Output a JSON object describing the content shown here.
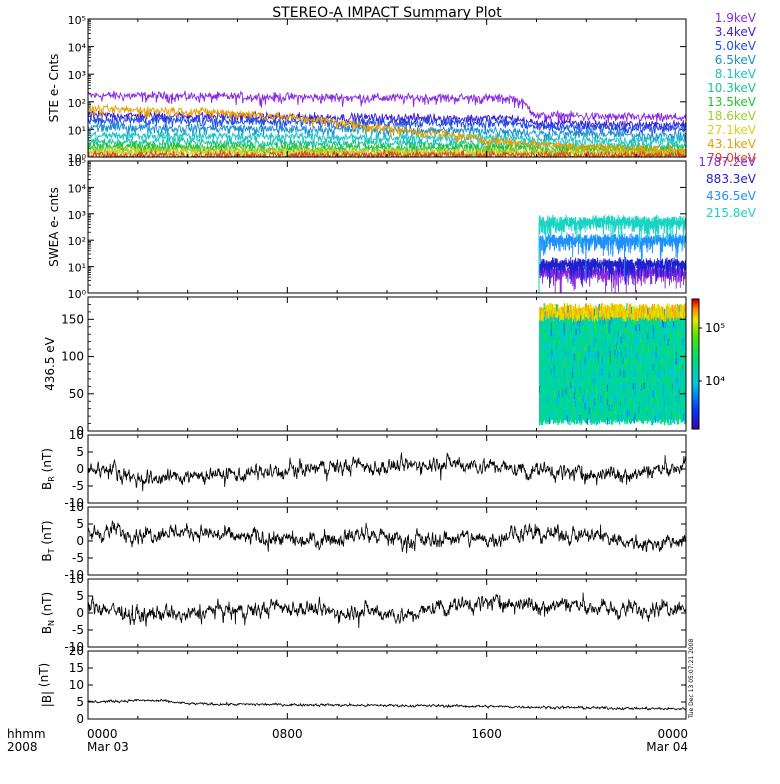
{
  "title": "STEREO-A IMPACT Summary Plot",
  "timestamp": "Tue Dec 13 05:07:21 2008",
  "time_axis": {
    "row1_label": "hhmm",
    "row2_label": "2008",
    "ticks": [
      {
        "hour": 0,
        "time": "0000",
        "date": "Mar 03"
      },
      {
        "hour": 8,
        "time": "0800",
        "date": ""
      },
      {
        "hour": 16,
        "time": "1600",
        "date": ""
      },
      {
        "hour": 24,
        "time": "0000",
        "date": "Mar 04"
      }
    ]
  },
  "chart_data": [
    {
      "id": "ste",
      "type": "line",
      "ylabel": "STE e- Cnts",
      "yscale": "log",
      "ylim": [
        1,
        100000
      ],
      "ytick_labels": [
        "10⁰",
        "10¹",
        "10²",
        "10³",
        "10⁴",
        "10⁵"
      ],
      "xlim_hours": [
        0,
        24
      ],
      "series": [
        {
          "name": "1.9keV",
          "color": "#8a2be2",
          "level": [
            170,
            170,
            165,
            165,
            160,
            155,
            155,
            150,
            150,
            145,
            145,
            140,
            140,
            140,
            140,
            140,
            135,
            135,
            30,
            32,
            30,
            28,
            28,
            27,
            27
          ]
        },
        {
          "name": "3.4keV",
          "color": "#3a1fd6",
          "level": [
            32,
            32,
            31,
            31,
            30,
            30,
            29,
            29,
            28,
            28,
            27,
            27,
            26,
            26,
            26,
            25,
            25,
            25,
            16,
            17,
            16,
            15,
            15,
            14,
            15
          ]
        },
        {
          "name": "5.0keV",
          "color": "#1f4fe8",
          "level": [
            22,
            22,
            21,
            21,
            20,
            20,
            20,
            19,
            19,
            19,
            18,
            18,
            18,
            18,
            17,
            17,
            17,
            17,
            12,
            12,
            11,
            11,
            11,
            11,
            11
          ]
        },
        {
          "name": "6.5keV",
          "color": "#1a8fd0",
          "level": [
            12,
            12,
            12,
            11,
            11,
            11,
            11,
            10,
            10,
            10,
            10,
            10,
            9,
            9,
            9,
            9,
            9,
            9,
            7,
            7,
            7,
            7,
            6,
            6,
            6
          ]
        },
        {
          "name": "8.1keV",
          "color": "#19c3c8",
          "level": [
            6,
            6,
            6,
            6,
            6,
            6,
            5.5,
            5.5,
            5.5,
            5.5,
            5,
            5,
            5,
            5,
            5,
            5,
            5,
            5,
            4,
            4,
            4,
            4,
            4,
            4,
            4
          ]
        },
        {
          "name": "10.3keV",
          "color": "#17c29a",
          "level": [
            3.5,
            3.5,
            3.5,
            3.4,
            3.4,
            3.3,
            3.3,
            3.3,
            3.2,
            3.2,
            3.2,
            3.1,
            3.1,
            3.1,
            3,
            3,
            3,
            3,
            2.6,
            2.6,
            2.5,
            2.5,
            2.5,
            2.5,
            2.5
          ]
        },
        {
          "name": "13.5keV",
          "color": "#22c22a",
          "level": [
            2.4,
            2.4,
            2.4,
            2.3,
            2.3,
            2.3,
            2.3,
            2.2,
            2.2,
            2.2,
            2.2,
            2.2,
            2.1,
            2.1,
            2.1,
            2.1,
            2.1,
            2.1,
            1.9,
            1.9,
            1.9,
            1.9,
            1.8,
            1.8,
            1.8
          ]
        },
        {
          "name": "18.6keV",
          "color": "#9acd32",
          "level": [
            1.8,
            1.8,
            1.8,
            1.8,
            1.7,
            1.7,
            1.7,
            1.7,
            1.7,
            1.7,
            1.6,
            1.6,
            1.6,
            1.6,
            1.6,
            1.6,
            1.6,
            1.6,
            1.5,
            1.5,
            1.5,
            1.5,
            1.5,
            1.5,
            1.5
          ]
        },
        {
          "name": "27.1keV",
          "color": "#d4d41a",
          "level": [
            1.45,
            1.45,
            1.45,
            1.4,
            1.4,
            1.4,
            1.4,
            1.4,
            1.4,
            1.4,
            1.35,
            1.35,
            1.35,
            1.35,
            1.35,
            1.35,
            1.3,
            1.3,
            1.3,
            1.3,
            1.3,
            1.3,
            1.3,
            1.3,
            1.3
          ]
        },
        {
          "name": "43.1keV",
          "color": "#e8a000",
          "level": [
            52,
            52,
            50,
            48,
            46,
            42,
            38,
            33,
            28,
            23,
            18,
            14,
            11,
            8.5,
            7,
            5.5,
            4.3,
            3.5,
            3,
            2.6,
            2.4,
            2.2,
            2,
            1.9,
            1.8
          ]
        },
        {
          "name": "79.0keV",
          "color": "#e04020",
          "level": [
            1.15,
            1.15,
            1.15,
            1.15,
            1.15,
            1.15,
            1.15,
            1.15,
            1.15,
            1.15,
            1.15,
            1.15,
            1.15,
            1.15,
            1.15,
            1.15,
            1.15,
            1.15,
            1.15,
            1.15,
            1.15,
            1.15,
            1.15,
            1.15,
            1.15
          ]
        }
      ]
    },
    {
      "id": "swea",
      "type": "line",
      "ylabel": "SWEA e- cnts",
      "yscale": "log",
      "ylim": [
        1,
        100000
      ],
      "ytick_labels": [
        "10⁰",
        "10¹",
        "10²",
        "10³",
        "10⁴",
        "10⁵"
      ],
      "data_start_hour": 18.1,
      "series": [
        {
          "name": "1787.2eV",
          "color": "#8a2be2",
          "level": 6
        },
        {
          "name": "883.3eV",
          "color": "#2020d0",
          "level": 12
        },
        {
          "name": "436.5eV",
          "color": "#1e90ff",
          "level": 100
        },
        {
          "name": "215.8eV",
          "color": "#19d3c5",
          "level": 480
        }
      ]
    },
    {
      "id": "pad",
      "type": "heatmap",
      "ylabel": "436.5 eV",
      "ylim": [
        0,
        180
      ],
      "yticks": [
        0,
        50,
        100,
        150
      ],
      "data_start_hour": 18.1,
      "colorbar_labels": [
        "10⁴",
        "10⁵"
      ]
    },
    {
      "id": "br",
      "type": "line",
      "ylabel_main": "B",
      "ylabel_sub": "R",
      "ylabel_unit": " (nT)",
      "ylim": [
        -10,
        10
      ],
      "yticks": [
        -10,
        -5,
        0,
        5,
        10
      ],
      "hourly_mean": [
        0,
        0,
        -3,
        -2.5,
        -2,
        -2,
        -1.5,
        -1,
        -1,
        0,
        0.5,
        1,
        0.5,
        1,
        2,
        1.5,
        1,
        0,
        -0.5,
        -1,
        -1.5,
        -1.5,
        -1,
        0,
        1
      ]
    },
    {
      "id": "bt",
      "type": "line",
      "ylabel_main": "B",
      "ylabel_sub": "T",
      "ylabel_unit": " (nT)",
      "ylim": [
        -10,
        10
      ],
      "yticks": [
        -10,
        -5,
        0,
        5,
        10
      ],
      "hourly_mean": [
        2,
        3,
        2,
        2.5,
        3,
        2,
        1,
        1,
        0,
        0.5,
        1,
        2,
        1,
        0,
        0.5,
        1,
        0.5,
        2,
        2,
        2,
        1.5,
        1,
        -1,
        -1,
        0
      ]
    },
    {
      "id": "bn",
      "type": "line",
      "ylabel_main": "B",
      "ylabel_sub": "N",
      "ylabel_unit": " (nT)",
      "ylim": [
        -10,
        10
      ],
      "yticks": [
        -10,
        -5,
        0,
        5,
        10
      ],
      "hourly_mean": [
        2,
        1,
        -1,
        0,
        -1,
        1,
        0,
        1,
        2,
        1,
        0,
        1,
        0,
        -1,
        2,
        2,
        3,
        3,
        2,
        3,
        2,
        1,
        1,
        2,
        2
      ]
    },
    {
      "id": "bmag",
      "type": "line",
      "ylabel_main": "|B|",
      "ylabel_sub": "",
      "ylabel_unit": " (nT)",
      "ylim": [
        0,
        20
      ],
      "yticks": [
        0,
        5,
        10,
        15,
        20
      ],
      "hourly_mean": [
        5,
        5.2,
        5.5,
        5.3,
        4.5,
        4.4,
        4.3,
        4.3,
        4.2,
        4.2,
        4.1,
        4.0,
        4.0,
        3.9,
        3.9,
        3.8,
        3.7,
        3.6,
        3.5,
        3.4,
        3.3,
        3.2,
        3.1,
        3.0,
        3.0
      ]
    }
  ]
}
